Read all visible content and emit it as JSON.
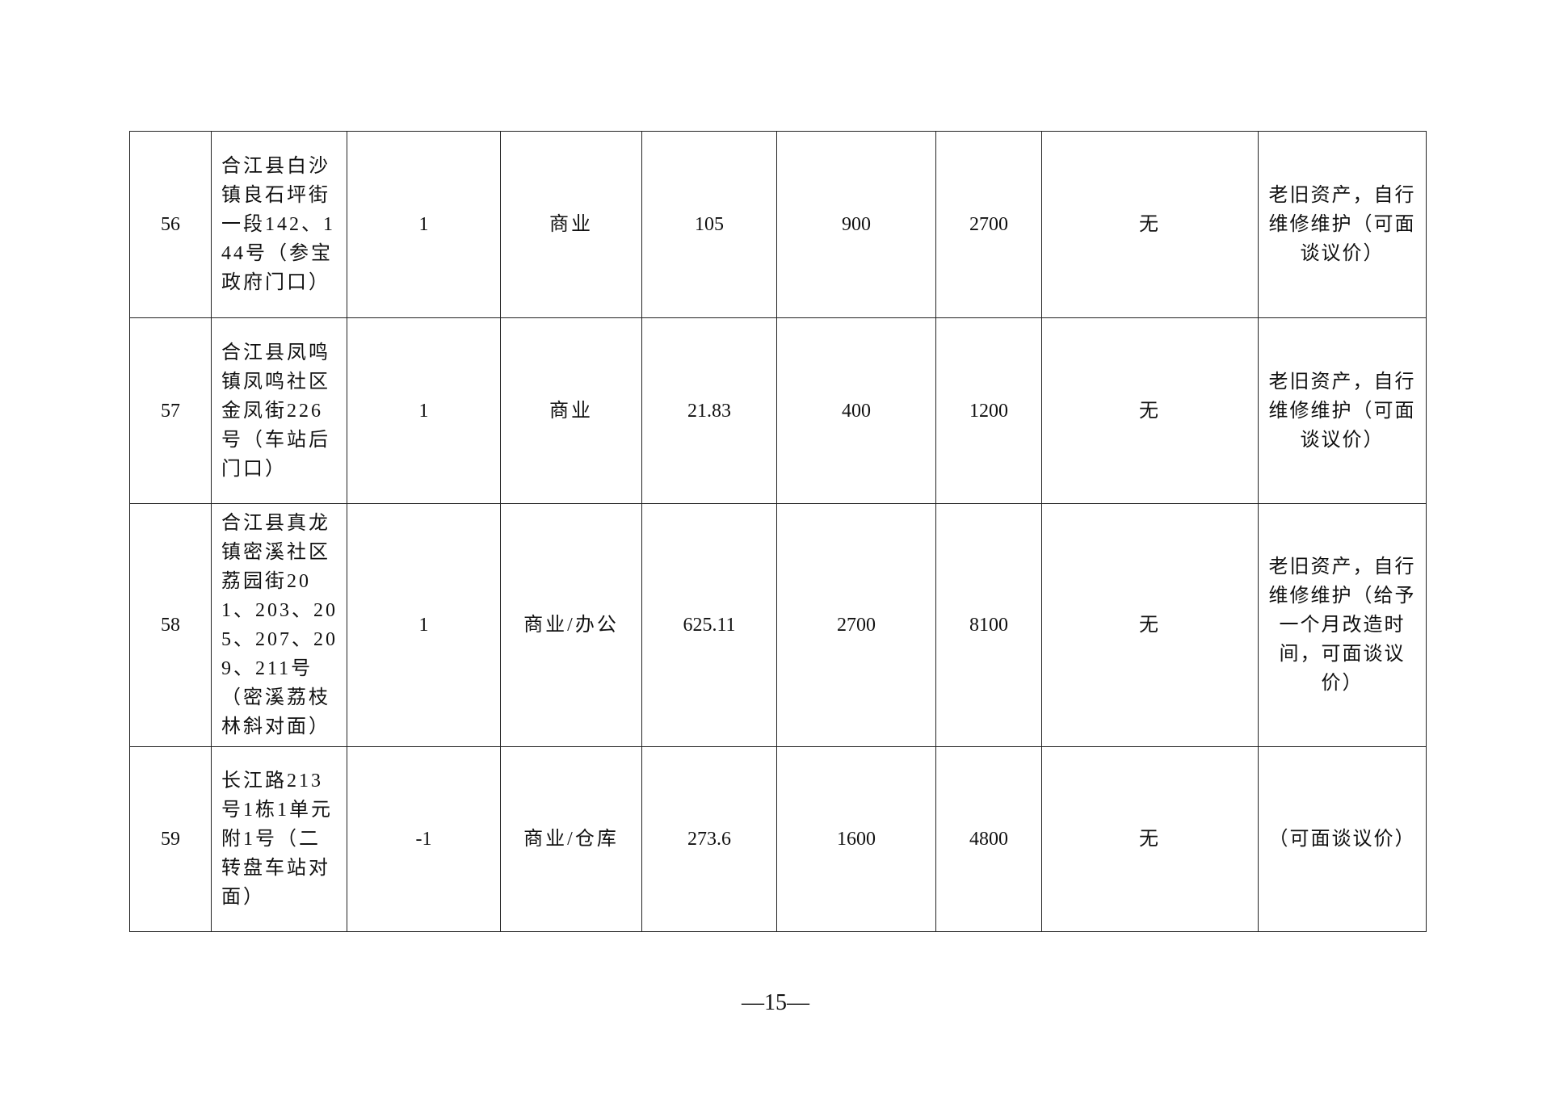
{
  "table": {
    "rows": [
      {
        "no": "56",
        "address": "合江县白沙镇良石坪街一段142、144号（参宝政府门口）",
        "floor": "1",
        "use": "商业",
        "area": "105",
        "rent": "900",
        "deposit": "2700",
        "other": "无",
        "note": "老旧资产，自行维修维护（可面谈议价）"
      },
      {
        "no": "57",
        "address": "合江县凤鸣镇凤鸣社区金凤街226号（车站后门口）",
        "floor": "1",
        "use": "商业",
        "area": "21.83",
        "rent": "400",
        "deposit": "1200",
        "other": "无",
        "note": "老旧资产，自行维修维护（可面谈议价）"
      },
      {
        "no": "58",
        "address": "合江县真龙镇密溪社区荔园街201、203、205、207、209、211号（密溪荔枝林斜对面）",
        "floor": "1",
        "use": "商业/办公",
        "area": "625.11",
        "rent": "2700",
        "deposit": "8100",
        "other": "无",
        "note": "老旧资产，自行维修维护（给予一个月改造时间，可面谈议价）"
      },
      {
        "no": "59",
        "address": "长江路213号1栋1单元附1号（二转盘车站对面）",
        "floor": "-1",
        "use": "商业/仓库",
        "area": "273.6",
        "rent": "1600",
        "deposit": "4800",
        "other": "无",
        "note": "（可面谈议价）"
      }
    ]
  },
  "page_number": "—15—"
}
